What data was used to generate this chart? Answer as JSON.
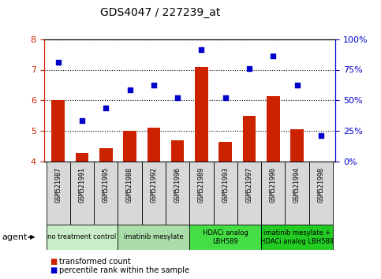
{
  "title": "GDS4047 / 227239_at",
  "samples": [
    "GSM521987",
    "GSM521991",
    "GSM521995",
    "GSM521988",
    "GSM521992",
    "GSM521996",
    "GSM521989",
    "GSM521993",
    "GSM521997",
    "GSM521990",
    "GSM521994",
    "GSM521998"
  ],
  "bar_values": [
    6.0,
    4.3,
    4.45,
    5.0,
    5.1,
    4.7,
    7.1,
    4.65,
    5.5,
    6.15,
    5.05,
    4.0
  ],
  "scatter_values": [
    7.25,
    5.35,
    5.75,
    6.35,
    6.5,
    6.1,
    7.65,
    6.1,
    7.05,
    7.45,
    6.5,
    4.85
  ],
  "ylim": [
    4,
    8
  ],
  "yticks": [
    4,
    5,
    6,
    7,
    8
  ],
  "bar_color": "#cc2200",
  "scatter_color": "#0000cc",
  "agent_groups": [
    {
      "label": "no treatment control",
      "start": 0,
      "end": 3,
      "color": "#c8eec8"
    },
    {
      "label": "imatinib mesylate",
      "start": 3,
      "end": 6,
      "color": "#aaddaa"
    },
    {
      "label": "HDACi analog\nLBH589",
      "start": 6,
      "end": 9,
      "color": "#44dd44"
    },
    {
      "label": "imatinib mesylate +\nHDACi analog LBH589",
      "start": 9,
      "end": 12,
      "color": "#22cc22"
    }
  ],
  "legend_bar_label": "transformed count",
  "legend_scatter_label": "percentile rank within the sample",
  "agent_label": "agent",
  "plot_bg_color": "#ffffff",
  "sample_box_color": "#d8d8d8"
}
